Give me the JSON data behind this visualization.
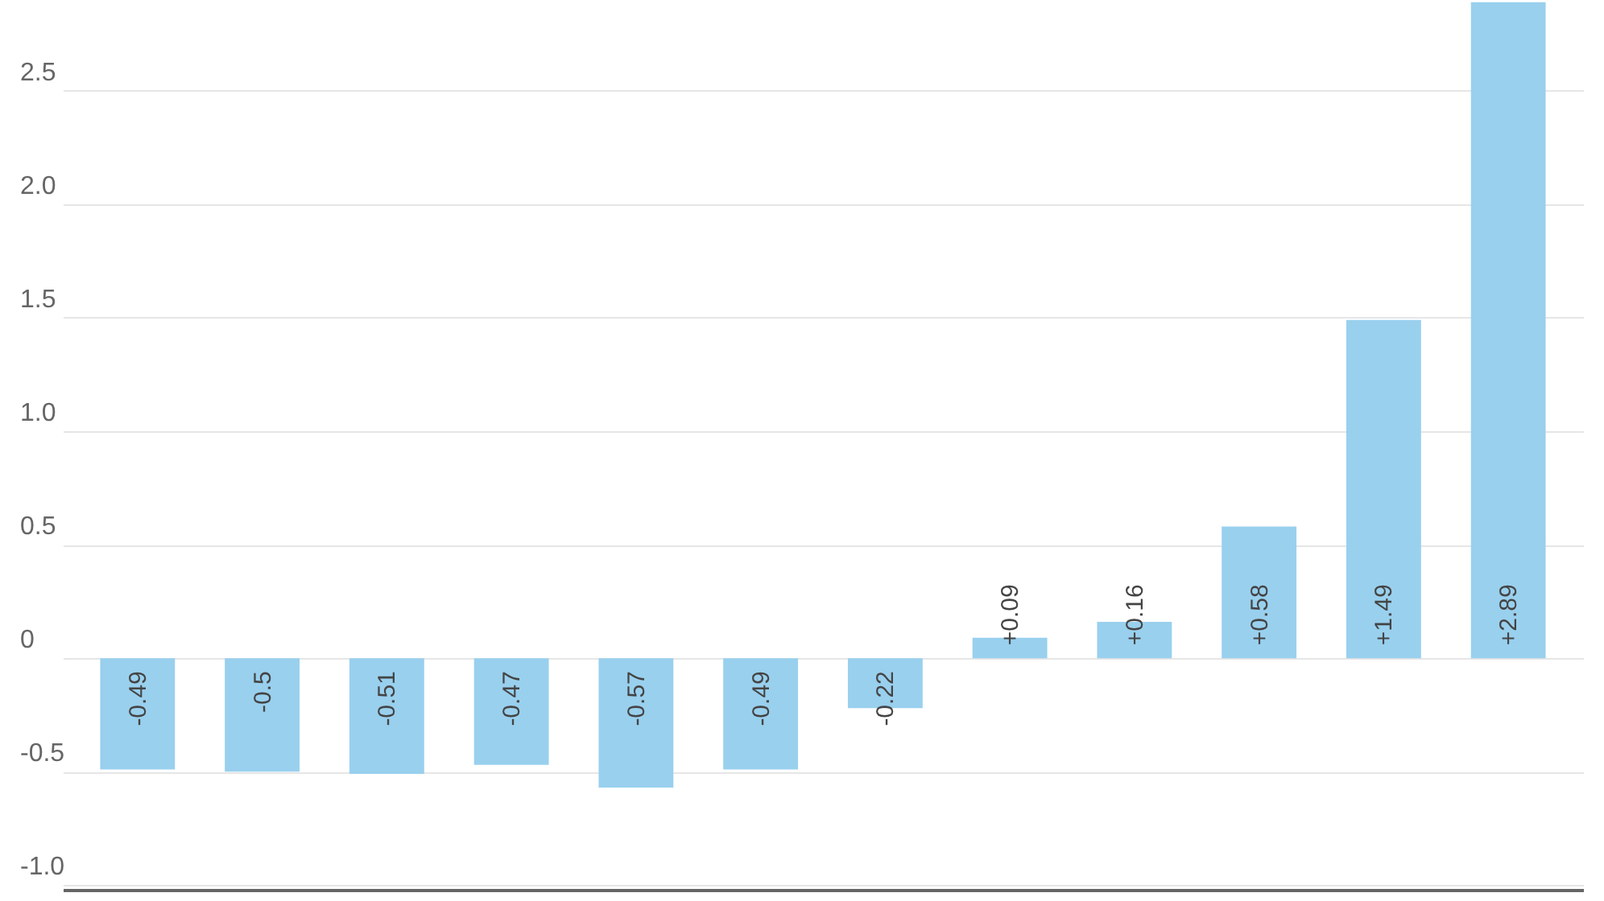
{
  "chart_data": {
    "type": "bar",
    "categories": [
      null,
      null,
      null,
      null,
      null,
      null,
      null,
      null,
      null,
      null,
      null,
      null
    ],
    "values": [
      -0.49,
      -0.5,
      -0.51,
      -0.47,
      -0.57,
      -0.49,
      -0.22,
      0.09,
      0.16,
      0.58,
      1.49,
      2.89
    ],
    "value_labels": [
      "-0.49",
      "-0.5",
      "-0.51",
      "-0.47",
      "-0.57",
      "-0.49",
      "-0.22",
      "+0.09",
      "+0.16",
      "+0.58",
      "+1.49",
      "+2.89"
    ],
    "color": "#99d0ee",
    "ylim": [
      -1.02,
      2.9
    ],
    "yticks": [
      {
        "value": -1,
        "label": "-1.0"
      },
      {
        "value": -0.5,
        "label": "-0.5"
      },
      0,
      {
        "value": 0.5,
        "label": "0.5"
      },
      {
        "value": 1,
        "label": "1.0"
      },
      {
        "value": 1.5,
        "label": "1.5"
      },
      {
        "value": 2,
        "label": "2.0"
      },
      {
        "value": 2.5,
        "label": "2.5"
      }
    ],
    "grid": "y",
    "tick_labels": "y"
  }
}
